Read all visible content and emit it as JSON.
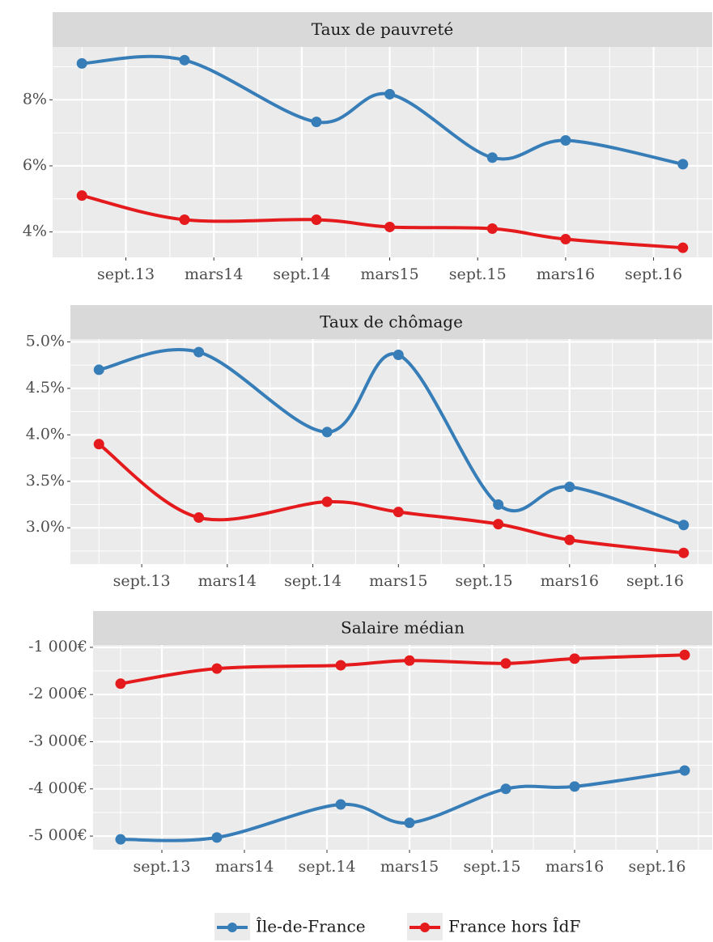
{
  "chart_data": [
    {
      "type": "line",
      "title": "Taux de pauvreté",
      "x": [
        "2013-06",
        "2014-01",
        "2014-10",
        "2015-03",
        "2015-10",
        "2016-03",
        "2016-11"
      ],
      "series": [
        {
          "name": "Île-de-France",
          "color": "#377eb8",
          "values": [
            9.1,
            9.2,
            7.33,
            8.17,
            6.25,
            6.77,
            6.05
          ]
        },
        {
          "name": "France hors ÎdF",
          "color": "#e41a1c",
          "values": [
            5.1,
            4.37,
            4.37,
            4.15,
            4.1,
            3.78,
            3.52
          ]
        }
      ],
      "xlim": [
        "2013-04",
        "2017-01"
      ],
      "ylim": [
        3.23,
        9.6
      ],
      "xticks": [
        {
          "value": "2013-09",
          "label": "sept.13"
        },
        {
          "value": "2014-03",
          "label": "mars14"
        },
        {
          "value": "2014-09",
          "label": "sept.14"
        },
        {
          "value": "2015-03",
          "label": "mars15"
        },
        {
          "value": "2015-09",
          "label": "sept.15"
        },
        {
          "value": "2016-03",
          "label": "mars16"
        },
        {
          "value": "2016-09",
          "label": "sept.16"
        }
      ],
      "yticks": [
        {
          "value": 4,
          "label": "4%"
        },
        {
          "value": 6,
          "label": "6%"
        },
        {
          "value": 8,
          "label": "8%"
        }
      ],
      "grid": true
    },
    {
      "type": "line",
      "title": "Taux de chômage",
      "x": [
        "2013-06",
        "2014-01",
        "2014-10",
        "2015-03",
        "2015-10",
        "2016-03",
        "2016-11"
      ],
      "series": [
        {
          "color": "#377eb8",
          "values": [
            4.7,
            4.89,
            4.03,
            4.86,
            3.25,
            3.44,
            3.03
          ]
        },
        {
          "color": "#e41a1c",
          "values": [
            3.9,
            3.11,
            3.28,
            3.17,
            3.04,
            2.87,
            2.73
          ]
        }
      ],
      "xlim": [
        "2013-04",
        "2017-01"
      ],
      "ylim": [
        2.61,
        5.03
      ],
      "xticks": [
        {
          "value": "2013-09",
          "label": "sept.13"
        },
        {
          "value": "2014-03",
          "label": "mars14"
        },
        {
          "value": "2014-09",
          "label": "sept.14"
        },
        {
          "value": "2015-03",
          "label": "mars15"
        },
        {
          "value": "2015-09",
          "label": "sept.15"
        },
        {
          "value": "2016-03",
          "label": "mars16"
        },
        {
          "value": "2016-09",
          "label": "sept.16"
        }
      ],
      "yticks": [
        {
          "value": 3,
          "label": "3.0%"
        },
        {
          "value": 3.5,
          "label": "3.5%"
        },
        {
          "value": 4,
          "label": "4.0%"
        },
        {
          "value": 4.5,
          "label": "4.5%"
        },
        {
          "value": 5,
          "label": "5.0%"
        }
      ],
      "grid": true
    },
    {
      "type": "line",
      "title": "Salaire médian",
      "x": [
        "2013-06",
        "2014-01",
        "2014-10",
        "2015-03",
        "2015-10",
        "2016-03",
        "2016-11"
      ],
      "series": [
        {
          "color": "#377eb8",
          "values": [
            -5070,
            -5030,
            -4330,
            -4720,
            -4000,
            -3950,
            -3610
          ]
        },
        {
          "color": "#e41a1c",
          "values": [
            -1770,
            -1450,
            -1380,
            -1280,
            -1340,
            -1240,
            -1160
          ]
        }
      ],
      "xlim": [
        "2013-04",
        "2017-01"
      ],
      "ylim": [
        -5290,
        -950
      ],
      "xticks": [
        {
          "value": "2013-09",
          "label": "sept.13"
        },
        {
          "value": "2014-03",
          "label": "mars14"
        },
        {
          "value": "2014-09",
          "label": "sept.14"
        },
        {
          "value": "2015-03",
          "label": "mars15"
        },
        {
          "value": "2015-09",
          "label": "sept.15"
        },
        {
          "value": "2016-03",
          "label": "mars16"
        },
        {
          "value": "2016-09",
          "label": "sept.16"
        }
      ],
      "yticks": [
        {
          "value": -5000,
          "label": "-5 000€"
        },
        {
          "value": -4000,
          "label": "-4 000€"
        },
        {
          "value": -3000,
          "label": "-3 000€"
        },
        {
          "value": -2000,
          "label": "-2 000€"
        },
        {
          "value": -1000,
          "label": "-1 000€"
        }
      ],
      "grid": true
    }
  ]
}
